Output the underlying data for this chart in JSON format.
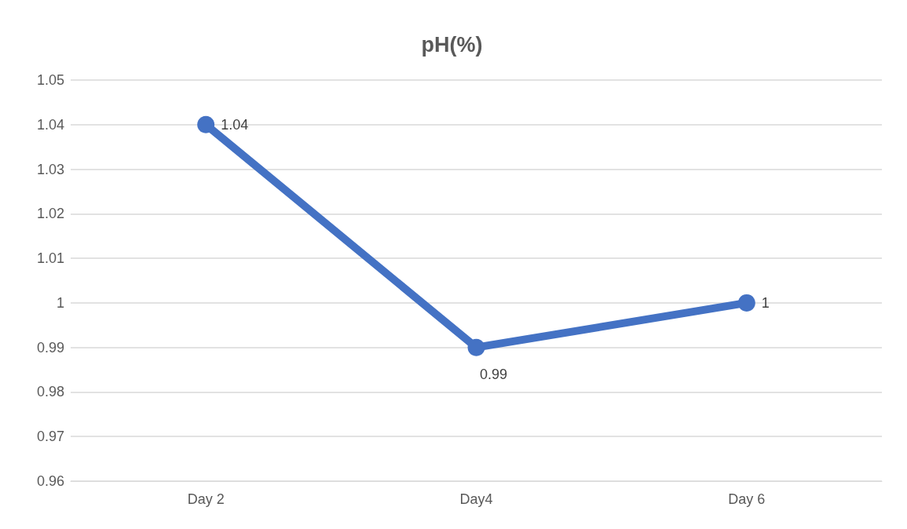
{
  "chart_data": {
    "type": "line",
    "title": "pH(%)",
    "categories": [
      "Day 2",
      "Day4",
      "Day 6"
    ],
    "series": [
      {
        "color": "#4472c4",
        "values": [
          1.04,
          0.99,
          1
        ]
      }
    ],
    "ylim": [
      0.96,
      1.05
    ],
    "yticks": [
      0.96,
      0.97,
      0.98,
      0.99,
      1,
      1.01,
      1.02,
      1.03,
      1.04,
      1.05
    ],
    "grid": "y",
    "data_labels": true,
    "marker": "circle"
  }
}
